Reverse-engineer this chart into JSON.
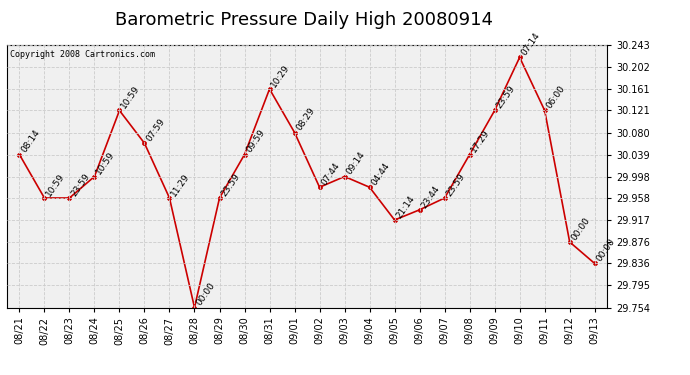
{
  "title": "Barometric Pressure Daily High 20080914",
  "copyright": "Copyright 2008 Cartronics.com",
  "background_color": "#ffffff",
  "plot_bg_color": "#f0f0f0",
  "grid_color": "#cccccc",
  "line_color": "#cc0000",
  "marker_color": "#cc0000",
  "ylim": [
    29.754,
    30.243
  ],
  "yticks": [
    29.754,
    29.795,
    29.836,
    29.876,
    29.917,
    29.958,
    29.998,
    30.039,
    30.08,
    30.121,
    30.161,
    30.202,
    30.243
  ],
  "dates": [
    "08/21",
    "08/22",
    "08/23",
    "08/24",
    "08/25",
    "08/26",
    "08/27",
    "08/28",
    "08/29",
    "08/30",
    "08/31",
    "09/01",
    "09/02",
    "09/03",
    "09/04",
    "09/05",
    "09/06",
    "09/07",
    "09/08",
    "09/09",
    "09/10",
    "09/11",
    "09/12",
    "09/13"
  ],
  "values": [
    30.039,
    29.958,
    29.958,
    29.998,
    30.121,
    30.06,
    29.958,
    29.754,
    29.958,
    30.039,
    30.161,
    30.08,
    29.978,
    29.998,
    29.978,
    29.917,
    29.936,
    29.958,
    30.039,
    30.121,
    30.22,
    30.121,
    29.876,
    29.836
  ],
  "labels": [
    "08:14",
    "10:59",
    "23:59",
    "10:59",
    "10:59",
    "07:59",
    "11:29",
    "00:00",
    "23:59",
    "09:59",
    "10:29",
    "08:29",
    "07:44",
    "09:14",
    "04:44",
    "21:14",
    "23:44",
    "23:59",
    "17:29",
    "23:59",
    "07:14",
    "06:00",
    "00:00",
    "00:00"
  ],
  "title_fontsize": 13,
  "tick_fontsize": 7,
  "label_fontsize": 6.5
}
